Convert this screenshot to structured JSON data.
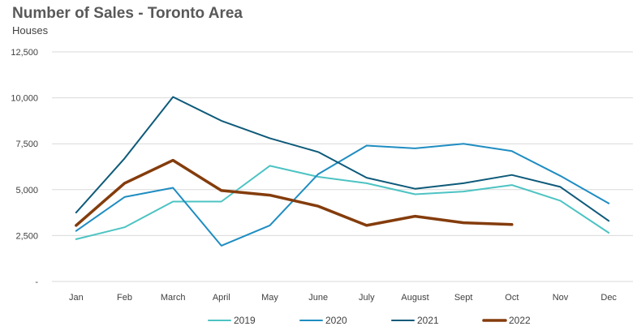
{
  "chart_data": {
    "type": "line",
    "title": "Number of Sales - Toronto Area",
    "subtitle": "Houses",
    "xlabel": "",
    "ylabel": "",
    "categories": [
      "Jan",
      "Feb",
      "March",
      "April",
      "May",
      "June",
      "July",
      "August",
      "Sept",
      "Oct",
      "Nov",
      "Dec"
    ],
    "ylim": [
      0,
      12500
    ],
    "yticks": [
      {
        "value": 0,
        "label": "-"
      },
      {
        "value": 2500,
        "label": "2,500"
      },
      {
        "value": 5000,
        "label": "5,000"
      },
      {
        "value": 7500,
        "label": "7,500"
      },
      {
        "value": 10000,
        "label": "10,000"
      },
      {
        "value": 12500,
        "label": "12,500"
      }
    ],
    "grid": true,
    "legend_position": "bottom",
    "series": [
      {
        "name": "2019",
        "color": "#4dc3c3",
        "width": 2,
        "values": [
          2300,
          2950,
          4350,
          4350,
          6300,
          5700,
          5350,
          4750,
          4900,
          5250,
          4400,
          2650
        ]
      },
      {
        "name": "2020",
        "color": "#1f8dc2",
        "width": 2,
        "values": [
          2750,
          4600,
          5100,
          1950,
          3050,
          5850,
          7400,
          7250,
          7500,
          7100,
          5750,
          4250
        ]
      },
      {
        "name": "2021",
        "color": "#0e5a7a",
        "width": 2,
        "values": [
          3750,
          6700,
          10050,
          8750,
          7800,
          7050,
          5650,
          5050,
          5350,
          5800,
          5150,
          3300
        ]
      },
      {
        "name": "2022",
        "color": "#843c0c",
        "width": 3.5,
        "values": [
          3050,
          5350,
          6600,
          4950,
          4700,
          4100,
          3050,
          3550,
          3200,
          3100,
          null,
          null
        ]
      }
    ]
  }
}
